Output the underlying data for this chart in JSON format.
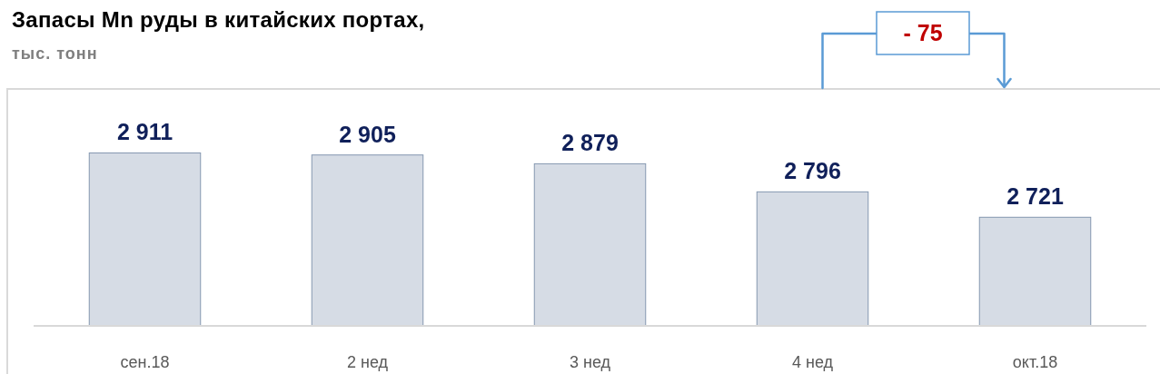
{
  "chart_data": {
    "type": "bar",
    "title": "Запасы Mn руды в китайских портах,",
    "subtitle": "тыс. тонн",
    "categories": [
      "сен.18",
      "2 нед",
      "3 нед",
      "4 нед",
      "окт.18"
    ],
    "values": [
      2911,
      2905,
      2879,
      2796,
      2721
    ],
    "value_labels": [
      "2 911",
      "2 905",
      "2 879",
      "2 796",
      "2 721"
    ],
    "color": "#d6dce5",
    "ylim": [
      2400,
      3100
    ],
    "tick_labels": "x",
    "annotations": [
      "- 75"
    ]
  }
}
